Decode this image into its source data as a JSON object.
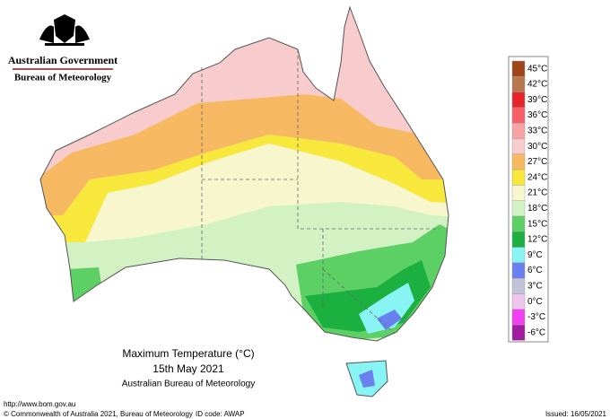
{
  "header": {
    "government": "Australian Government",
    "agency": "Bureau of Meteorology"
  },
  "legend": {
    "items": [
      {
        "label": "45°C",
        "color": "#a0461b"
      },
      {
        "label": "42°C",
        "color": "#b8784e"
      },
      {
        "label": "39°C",
        "color": "#e8242a"
      },
      {
        "label": "36°C",
        "color": "#f86068"
      },
      {
        "label": "33°C",
        "color": "#f5a3a3"
      },
      {
        "label": "30°C",
        "color": "#f8cccc"
      },
      {
        "label": "27°C",
        "color": "#f7b862"
      },
      {
        "label": "24°C",
        "color": "#f9e83c"
      },
      {
        "label": "21°C",
        "color": "#f8f6cc"
      },
      {
        "label": "18°C",
        "color": "#d2f2c4"
      },
      {
        "label": "15°C",
        "color": "#5cd064"
      },
      {
        "label": "12°C",
        "color": "#1cb040"
      },
      {
        "label": "9°C",
        "color": "#88f4f4"
      },
      {
        "label": "6°C",
        "color": "#6a7ff0"
      },
      {
        "label": "3°C",
        "color": "#c2c2d8"
      },
      {
        "label": "0°C",
        "color": "#ecc4ec"
      },
      {
        "label": "-3°C",
        "color": "#f040f0"
      },
      {
        "label": "-6°C",
        "color": "#a01ca0"
      }
    ]
  },
  "caption": {
    "title": "Maximum Temperature (°C)",
    "date": "15th May 2021",
    "source": "Australian Bureau of Meteorology"
  },
  "footer": {
    "url": "http://www.bom.gov.au",
    "copyright": "© Commonwealth of Australia 2021, Bureau of Meteorology",
    "id_code": "ID code: AWAP",
    "issued": "Issued: 16/05/2021"
  }
}
